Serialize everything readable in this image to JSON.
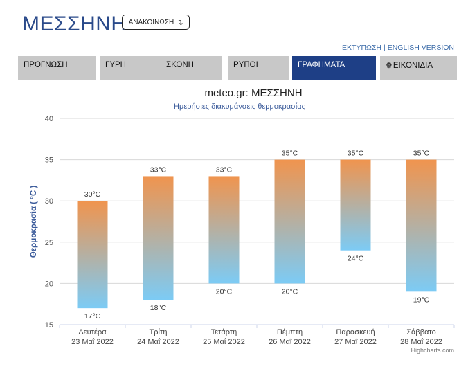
{
  "header": {
    "title": "ΜΕΣΣΗΝΗ",
    "announce_label": "ΑΝΑΚΟΙΝΩΣΗ",
    "announce_arrow": "↴"
  },
  "toplinks": {
    "print": "ΕΚΤΥΠΩΣΗ",
    "separator": "|",
    "english": "ENGLISH VERSION"
  },
  "tabs": [
    {
      "label": "ΠΡΟΓΝΩΣΗ",
      "active": false
    },
    {
      "label": "ΓΥΡΗ",
      "active": false
    },
    {
      "label": "ΣΚΟΝΗ",
      "active": false
    },
    {
      "label": "ΡΥΠΟΙ",
      "active": false
    },
    {
      "label": "ΓΡΑΦΗΜΑΤΑ",
      "active": true
    },
    {
      "label": "ΕΙΚΟΝΙΔΙΑ",
      "active": false,
      "icon": "gear-icon"
    }
  ],
  "colors": {
    "accent": "#1e3f86",
    "tab_bg": "#c8c8c8",
    "bar_top": "#f0944e",
    "bar_bottom": "#7ccbf5"
  },
  "chart_data": {
    "type": "bar",
    "subtype": "columnrange",
    "title": "meteo.gr: ΜΕΣΣΗΝΗ",
    "subtitle": "Ημερήσιες διακυμάνσεις θερμοκρασίας",
    "ylabel": "Θερμοκρασία ( °C )",
    "ylim": [
      15,
      40
    ],
    "yticks": [
      15,
      20,
      25,
      30,
      35,
      40
    ],
    "grid": true,
    "unit": "°C",
    "categories": [
      [
        "Δευτέρα",
        "23 Μαΐ 2022"
      ],
      [
        "Τρίτη",
        "24 Μαΐ 2022"
      ],
      [
        "Τετάρτη",
        "25 Μαΐ 2022"
      ],
      [
        "Πέμπτη",
        "26 Μαΐ 2022"
      ],
      [
        "Παρασκευή",
        "27 Μαΐ 2022"
      ],
      [
        "Σάββατο",
        "28 Μαΐ 2022"
      ]
    ],
    "low": [
      17,
      18,
      20,
      20,
      24,
      19
    ],
    "high": [
      30,
      33,
      33,
      35,
      35,
      35
    ],
    "credit": "Highcharts.com"
  }
}
